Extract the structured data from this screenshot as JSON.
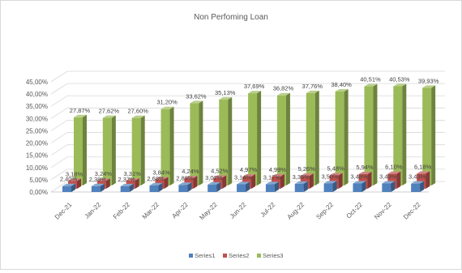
{
  "chart_data": {
    "type": "bar",
    "title": "Non Perfoming Loan",
    "categories": [
      "Dec-21",
      "Jan-22",
      "Feb-22",
      "Mar-22",
      "Apr-22",
      "May-22",
      "Jun-22",
      "Jul-22",
      "Aug-22",
      "Sep-22",
      "Oct-22",
      "Nov-22",
      "Dec-22"
    ],
    "series": [
      {
        "name": "Series1",
        "color": "#4f81bd",
        "values": [
          2.4,
          2.38,
          2.37,
          2.68,
          2.89,
          3.02,
          3.14,
          3.17,
          3.35,
          3.5,
          3.48,
          3.49,
          3.43
        ],
        "labels": [
          "2,40%",
          "2,38%",
          "2,37%",
          "2,68%",
          "2,89%",
          "3,02%",
          "3,14%",
          "3,17%",
          "3,35%",
          "3,50%",
          "3,48%",
          "3,49%",
          "3,43%"
        ]
      },
      {
        "name": "Series2",
        "color": "#c0504d",
        "values": [
          3.18,
          3.24,
          3.31,
          3.84,
          4.24,
          4.52,
          4.97,
          4.99,
          5.26,
          5.48,
          5.94,
          6.1,
          6.18
        ],
        "labels": [
          "3,18%",
          "3,24%",
          "3,31%",
          "3,84%",
          "4,24%",
          "4,52%",
          "4,97%",
          "4,99%",
          "5,26%",
          "5,48%",
          "5,94%",
          "6,10%",
          "6,18%"
        ]
      },
      {
        "name": "Series3",
        "color": "#9bbb59",
        "values": [
          27.87,
          27.62,
          27.6,
          31.2,
          33.62,
          35.13,
          37.69,
          36.82,
          37.76,
          38.4,
          40.51,
          40.53,
          39.93
        ],
        "labels": [
          "27,87%",
          "27,62%",
          "27,60%",
          "31,20%",
          "33,62%",
          "35,13%",
          "37,69%",
          "36,82%",
          "37,76%",
          "38,40%",
          "40,51%",
          "40,53%",
          "39,93%"
        ]
      }
    ],
    "yticks": [
      "0,00%",
      "5,00%",
      "10,00%",
      "15,00%",
      "20,00%",
      "25,00%",
      "30,00%",
      "35,00%",
      "40,00%",
      "45,00%"
    ],
    "ylim": [
      0,
      45
    ],
    "grid": true,
    "legend_position": "bottom"
  }
}
